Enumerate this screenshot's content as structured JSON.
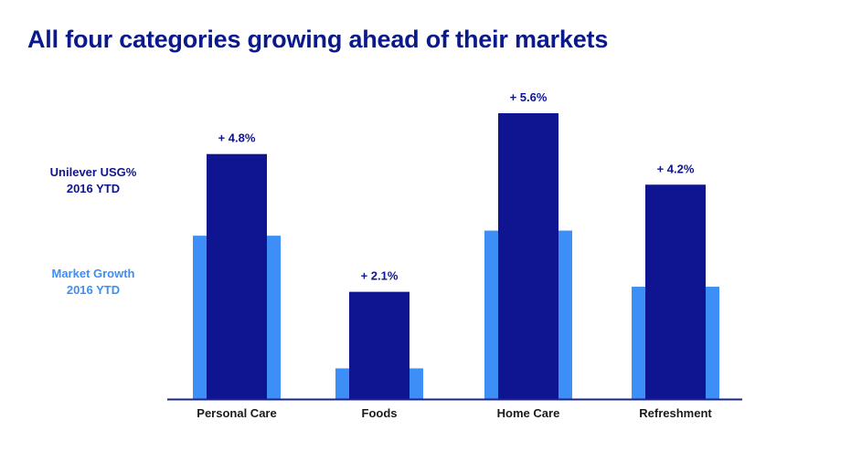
{
  "title": "All four categories growing ahead of their markets",
  "legend": {
    "usg": {
      "line1": "Unilever USG%",
      "line2": "2016 YTD"
    },
    "market": {
      "line1": "Market Growth",
      "line2": "2016 YTD"
    }
  },
  "colors": {
    "title": "#0a1a8c",
    "usg": "#0f1590",
    "market": "#3e8ef7",
    "axis": "#1a2390"
  },
  "chart_data": {
    "type": "bar",
    "title": "All four categories growing ahead of their markets",
    "categories": [
      "Personal Care",
      "Foods",
      "Home Care",
      "Refreshment"
    ],
    "series": [
      {
        "name": "Unilever USG% 2016 YTD",
        "values": [
          4.8,
          2.1,
          5.6,
          4.2
        ]
      },
      {
        "name": "Market Growth 2016 YTD",
        "values": [
          3.2,
          0.6,
          3.3,
          2.2
        ]
      }
    ],
    "data_labels": [
      "+ 4.8%",
      "+ 2.1%",
      "+ 5.6%",
      "+ 4.2%"
    ],
    "ylim": [
      0,
      5.6
    ],
    "grid": false,
    "legend_position": "left"
  }
}
